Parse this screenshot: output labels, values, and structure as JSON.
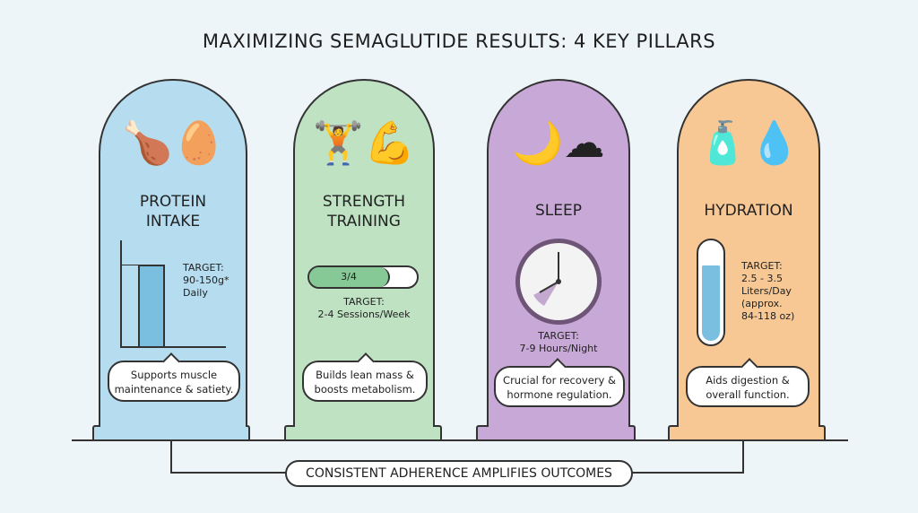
{
  "title": "MAXIMIZING SEMAGLUTIDE RESULTS: 4 KEY PILLARS",
  "colors": {
    "protein": "#b5dcef",
    "strength": "#bfe2c3",
    "sleep": "#c8a8d7",
    "hydration": "#f8c894",
    "background": "#eef5f8"
  },
  "pillars": [
    {
      "title_1": "PROTEIN",
      "title_2": "INTAKE",
      "icon": "meat-egg-icon",
      "target_label": "TARGET:",
      "target_1": "90-150g*",
      "target_2": "Daily",
      "note_1": "Supports muscle",
      "note_2": "maintenance & satiety."
    },
    {
      "title_1": "STRENGTH",
      "title_2": "TRAINING",
      "icon": "dumbbell-bicep-icon",
      "progress_label": "3/4",
      "progress": 0.75,
      "target_label": "TARGET:",
      "target_1": "2-4 Sessions/Week",
      "note_1": "Builds lean mass &",
      "note_2": "boosts metabolism."
    },
    {
      "title_1": "SLEEP",
      "icon": "moon-cloud-icon",
      "target_label": "TARGET:",
      "target_1": "7-9 Hours/Night",
      "note_1": "Crucial for recovery &",
      "note_2": "hormone regulation."
    },
    {
      "title_1": "HYDRATION",
      "icon": "water-bottle-glass-icon",
      "target_label": "TARGET:",
      "target_1": "2.5 - 3.5",
      "target_2": "Liters/Day",
      "target_3": "(approx.",
      "target_4": "84-118 oz)",
      "note_1": "Aids digestion &",
      "note_2": "overall function."
    }
  ],
  "banner": "CONSISTENT ADHERENCE AMPLIFIES OUTCOMES"
}
